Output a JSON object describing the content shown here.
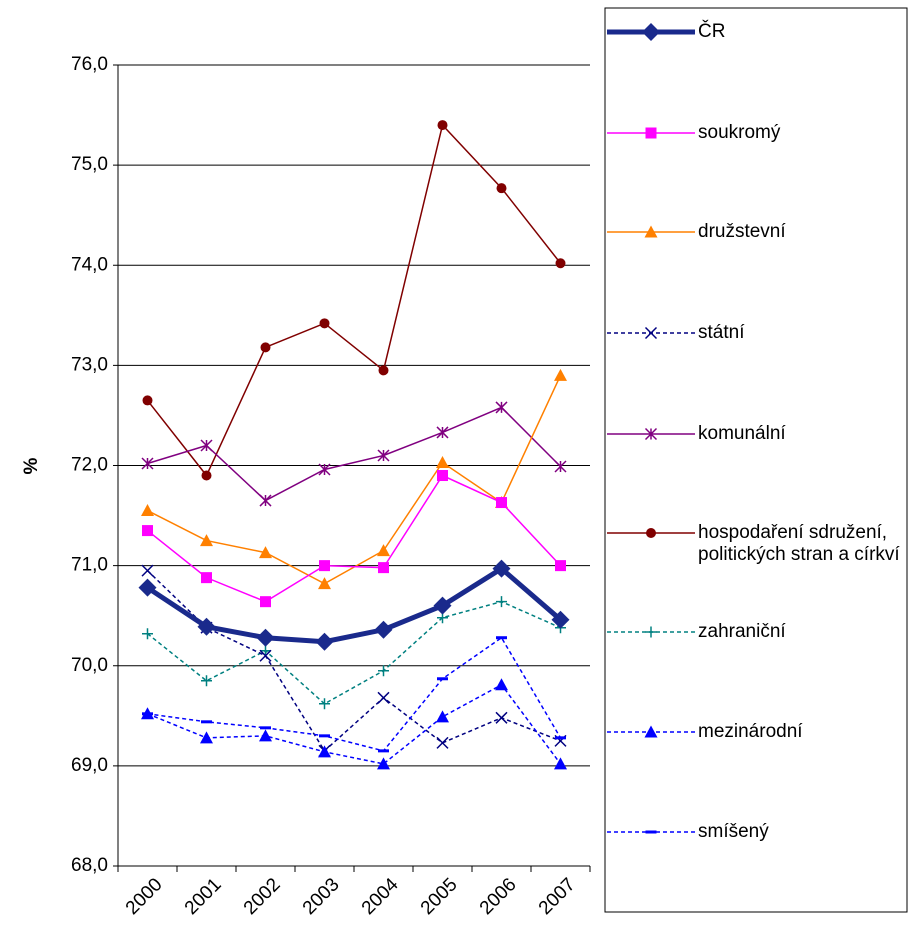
{
  "chart_data": {
    "type": "line",
    "y_label": "%",
    "categories": [
      "2000",
      "2001",
      "2002",
      "2003",
      "2004",
      "2005",
      "2006",
      "2007"
    ],
    "ylim": [
      68,
      76
    ],
    "yticks": [
      {
        "value": 68,
        "label": "68,0"
      },
      {
        "value": 69,
        "label": "69,0"
      },
      {
        "value": 70,
        "label": "70,0"
      },
      {
        "value": 71,
        "label": "71,0"
      },
      {
        "value": 72,
        "label": "72,0"
      },
      {
        "value": 73,
        "label": "73,0"
      },
      {
        "value": 74,
        "label": "74,0"
      },
      {
        "value": 75,
        "label": "75,0"
      },
      {
        "value": 76,
        "label": "76,0"
      }
    ],
    "grid": true,
    "legend": "right",
    "series": [
      {
        "name": "ČR",
        "color": "#1a2a8c",
        "width": 5,
        "dashed": false,
        "marker": "diamond",
        "values": [
          70.78,
          70.39,
          70.28,
          70.24,
          70.36,
          70.6,
          70.97,
          70.46
        ]
      },
      {
        "name": "soukromý",
        "color": "#ff00ff",
        "width": 1.5,
        "dashed": false,
        "marker": "square",
        "values": [
          71.35,
          70.88,
          70.64,
          71.0,
          70.98,
          71.9,
          71.63,
          71.0
        ]
      },
      {
        "name": "družstevní",
        "color": "#ff8000",
        "width": 1.5,
        "dashed": false,
        "marker": "triangle",
        "values": [
          71.55,
          71.25,
          71.13,
          70.82,
          71.15,
          72.03,
          71.63,
          72.9
        ]
      },
      {
        "name": "státní",
        "color": "#000080",
        "width": 1.5,
        "dashed": true,
        "marker": "x",
        "values": [
          70.95,
          70.38,
          70.1,
          69.15,
          69.68,
          69.23,
          69.48,
          69.25
        ]
      },
      {
        "name": "komunální",
        "color": "#800080",
        "width": 1.5,
        "dashed": false,
        "marker": "star",
        "values": [
          72.02,
          72.2,
          71.65,
          71.96,
          72.1,
          72.33,
          72.58,
          71.99
        ]
      },
      {
        "name": "hospodaření sdružení, politických stran a církví",
        "color": "#800000",
        "width": 1.5,
        "dashed": false,
        "marker": "circle",
        "values": [
          72.65,
          71.9,
          73.18,
          73.42,
          72.95,
          75.4,
          74.77,
          74.02
        ]
      },
      {
        "name": "zahraniční",
        "color": "#008080",
        "width": 1.5,
        "dashed": true,
        "marker": "plus",
        "values": [
          70.32,
          69.85,
          70.15,
          69.62,
          69.95,
          70.48,
          70.64,
          70.38
        ]
      },
      {
        "name": "mezinárodní",
        "color": "#0000ff",
        "width": 1.5,
        "dashed": true,
        "marker": "triangle",
        "values": [
          69.52,
          69.28,
          69.3,
          69.14,
          69.02,
          69.49,
          69.81,
          69.02
        ]
      },
      {
        "name": "smíšený",
        "color": "#0000ff",
        "width": 1.5,
        "dashed": true,
        "marker": "dash",
        "values": [
          69.52,
          69.44,
          69.38,
          69.3,
          69.15,
          69.87,
          70.28,
          69.28
        ]
      }
    ]
  }
}
